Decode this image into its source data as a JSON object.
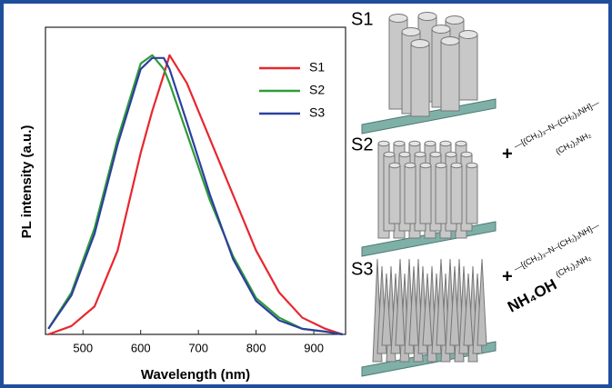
{
  "chart_data": {
    "type": "line",
    "xlabel": "Wavelength (nm)",
    "ylabel": "PL intensity (a.u.)",
    "x": [
      440,
      480,
      520,
      560,
      600,
      620,
      640,
      650,
      680,
      720,
      760,
      800,
      840,
      880,
      920,
      950
    ],
    "series": [
      {
        "name": "S1",
        "color": "#e8262e",
        "values": [
          0.0,
          0.03,
          0.1,
          0.3,
          0.65,
          0.8,
          0.93,
          1.0,
          0.9,
          0.7,
          0.5,
          0.3,
          0.15,
          0.06,
          0.02,
          0.0
        ]
      },
      {
        "name": "S2",
        "color": "#2e9b3a",
        "values": [
          0.02,
          0.15,
          0.38,
          0.7,
          0.97,
          1.0,
          0.95,
          0.9,
          0.72,
          0.48,
          0.28,
          0.13,
          0.06,
          0.02,
          0.01,
          0.0
        ]
      },
      {
        "name": "S3",
        "color": "#2d3f9e",
        "values": [
          0.02,
          0.14,
          0.36,
          0.68,
          0.95,
          0.99,
          0.99,
          0.95,
          0.76,
          0.5,
          0.27,
          0.12,
          0.05,
          0.02,
          0.01,
          0.0
        ]
      }
    ],
    "xlim": [
      435,
      955
    ],
    "ylim": [
      0,
      1.1
    ],
    "xticks": [
      500,
      600,
      700,
      800,
      900
    ],
    "legend": "upper right"
  },
  "diagram": {
    "labels": [
      "S1",
      "S2",
      "S3"
    ],
    "formula_main": "—[(CH₂)₃–N–(CH₂)₃NH]—",
    "formula_branch": "(CH₂)₂NH₂",
    "plus": "+",
    "reagent": "NH₄OH"
  }
}
